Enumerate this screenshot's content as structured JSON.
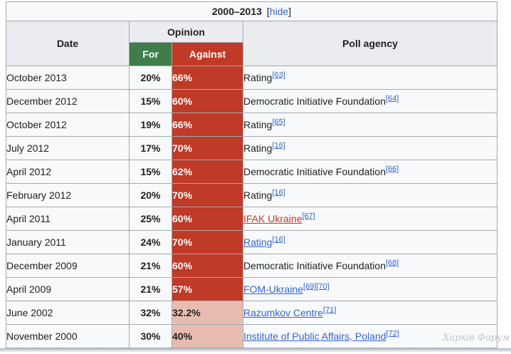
{
  "colors": {
    "text": "#202122",
    "border": "#a2a9b1",
    "header-bg": "#eaecf0",
    "cell-bg": "#f8f9fa",
    "green": "#3f7d4a",
    "red": "#bf3a27",
    "pink": "#e9bcb2",
    "link-blue": "#3366cc",
    "link-red": "#c0392b",
    "shade": "#aeb5bf",
    "watermark": "#bfc5cf"
  },
  "table": {
    "title": "2000–2013",
    "toggle": {
      "open_bracket": "[",
      "label": "hide",
      "close_bracket": "]"
    },
    "headers": {
      "date": "Date",
      "opinion": "Opinion",
      "for": "For",
      "against": "Against",
      "agency": "Poll agency"
    },
    "rows": [
      {
        "date": "October 2013",
        "for": "20%",
        "against": "66%",
        "tone": "dark",
        "agency": "Rating",
        "link": "plain",
        "refs": [
          "[63]"
        ]
      },
      {
        "date": "December 2012",
        "for": "15%",
        "against": "60%",
        "tone": "dark",
        "agency": "Democratic Initiative Foundation",
        "link": "plain",
        "refs": [
          "[64]"
        ]
      },
      {
        "date": "October 2012",
        "for": "19%",
        "against": "66%",
        "tone": "dark",
        "agency": "Rating",
        "link": "plain",
        "refs": [
          "[65]"
        ]
      },
      {
        "date": "July 2012",
        "for": "17%",
        "against": "70%",
        "tone": "dark",
        "agency": "Rating",
        "link": "plain",
        "refs": [
          "[16]"
        ]
      },
      {
        "date": "April 2012",
        "for": "15%",
        "against": "62%",
        "tone": "dark",
        "agency": "Democratic Initiative Foundation",
        "link": "plain",
        "refs": [
          "[66]"
        ]
      },
      {
        "date": "February 2012",
        "for": "20%",
        "against": "70%",
        "tone": "dark",
        "agency": "Rating",
        "link": "plain",
        "refs": [
          "[16]"
        ]
      },
      {
        "date": "April 2011",
        "for": "25%",
        "against": "60%",
        "tone": "dark",
        "agency": "IFAK Ukraine",
        "link": "red",
        "refs": [
          "[67]"
        ]
      },
      {
        "date": "January 2011",
        "for": "24%",
        "against": "70%",
        "tone": "dark",
        "agency": "Rating",
        "link": "blue",
        "refs": [
          "[16]"
        ]
      },
      {
        "date": "December 2009",
        "for": "21%",
        "against": "60%",
        "tone": "dark",
        "agency": "Democratic Initiative Foundation",
        "link": "plain",
        "refs": [
          "[68]"
        ]
      },
      {
        "date": "April 2009",
        "for": "21%",
        "against": "57%",
        "tone": "dark",
        "agency": "FOM-Ukraine",
        "link": "blue",
        "refs": [
          "[69]",
          "[70]"
        ]
      },
      {
        "date": "June 2002",
        "for": "32%",
        "against": "32.2%",
        "tone": "light",
        "agency": "Razumkov Centre",
        "link": "blue",
        "refs": [
          "[71]"
        ]
      },
      {
        "date": "November 2000",
        "for": "30%",
        "against": "40%",
        "tone": "light",
        "agency": "Institute of Public Affairs, Poland",
        "link": "blue",
        "refs": [
          "[72]"
        ]
      }
    ]
  },
  "watermark": "Харків Форум"
}
